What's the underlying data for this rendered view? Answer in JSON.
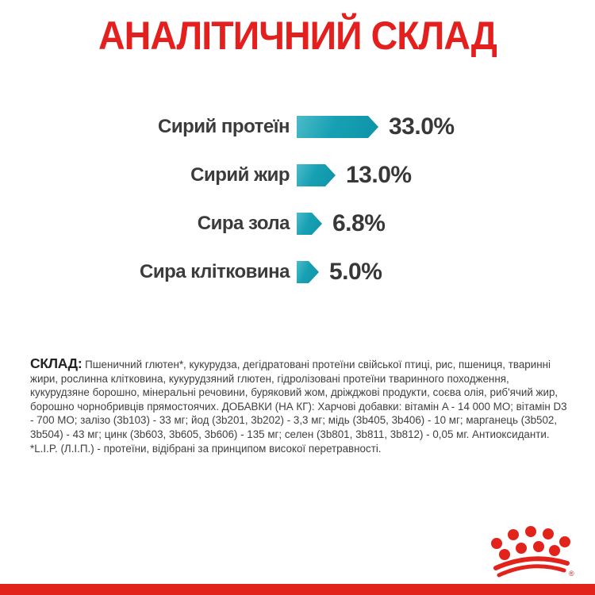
{
  "title": "АНАЛІТИЧНИЙ СКЛАД",
  "chart_data": {
    "type": "bar",
    "orientation": "horizontal",
    "title": "АНАЛІТИЧНИЙ СКЛАД",
    "categories": [
      "Сирий протеїн",
      "Сирий жир",
      "Сира зола",
      "Сира клітковина"
    ],
    "values": [
      33.0,
      13.0,
      6.8,
      5.0
    ],
    "value_labels": [
      "33.0%",
      "13.0%",
      "6.8%",
      "5.0%"
    ],
    "unit": "%",
    "xlim": [
      0,
      35
    ],
    "grid": false,
    "legend": false,
    "bar_shape": "right-pointing-arrow",
    "bar_color_gradient": [
      "#4cbbc9",
      "#0e93a7"
    ]
  },
  "composition": {
    "label": "СКЛАД:",
    "text": "Пшеничний глютен*, кукурудза, дегідратовані протеїни свійської птиці, рис, пшениця, тваринні жири, рослинна клітковина, кукурудзяний глютен, гідролізовані протеїни тваринного походження, кукурудзяне борошно, мінеральні речовини, буряковий жом, дріжджові продукти, соєва олія, риб'ячий жир, борошно чорнобривців прямостоячих. ДОБАВКИ (НА КГ): Харчові добавки: вітамін A - 14 000 МО; вітамін D3 - 700 МО; залізо (3b103) - 33 мг; йод (3b201, 3b202) - 3,3 мг; мідь (3b405, 3b406) - 10 мг; марганець (3b502, 3b504) - 43 мг; цинк (3b603, 3b605, 3b606) - 135 мг; селен (3b801, 3b811, 3b812) - 0,05 мг. Антиоксиданти.",
    "footnote": "*L.I.P. (Л.І.П.) - протеїни, відібрані за принципом високої перетравності."
  },
  "brand": {
    "logo": "royal-canin-crown",
    "registered_mark": "®"
  },
  "colors": {
    "brand_red": "#e2231c",
    "title_red": "#e3201e",
    "bar_teal_light": "#4cbbc9",
    "bar_teal_mid": "#17a0b3",
    "bar_teal_dark": "#0e93a7",
    "text_dark": "#3f3f3f",
    "label_gray": "#3b3b3b"
  }
}
